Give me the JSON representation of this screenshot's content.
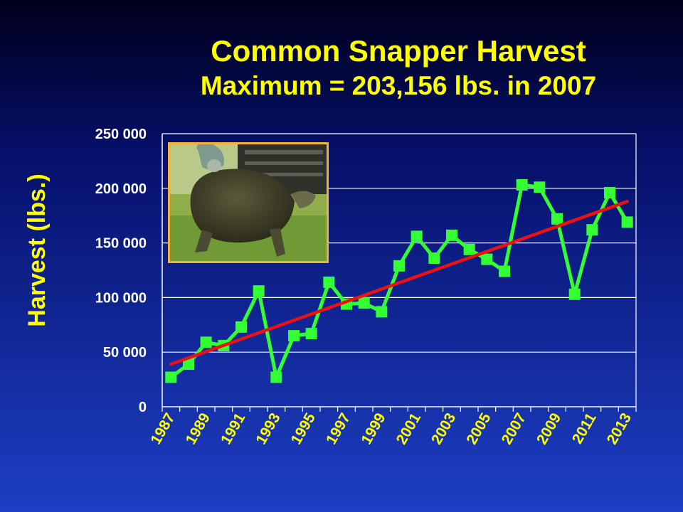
{
  "slide": {
    "title": "Common Snapper Harvest",
    "subtitle": "Maximum = 203,156 lbs. in 2007",
    "photo_icon": "snapping-turtle-photo"
  },
  "chart_data": {
    "type": "line",
    "title": "Common Snapper Harvest",
    "subtitle": "Maximum = 203,156 lbs. in 2007",
    "xlabel": "",
    "ylabel": "Harvest (lbs.)",
    "ylim": [
      0,
      250000
    ],
    "yticks": [
      0,
      50000,
      100000,
      150000,
      200000,
      250000
    ],
    "ytick_labels": [
      "0",
      "50 000",
      "100 000",
      "150 000",
      "200 000",
      "250 000"
    ],
    "xlim": [
      1987,
      2013
    ],
    "xtick_labels": [
      "1987",
      "1989",
      "1991",
      "1993",
      "1995",
      "1997",
      "1999",
      "2001",
      "2003",
      "2005",
      "2007",
      "2009",
      "2011",
      "2013"
    ],
    "grid": true,
    "legend": "none",
    "series": [
      {
        "color": "#33ff33",
        "marker": "square",
        "x": [
          1987,
          1988,
          1989,
          1990,
          1991,
          1992,
          1993,
          1994,
          1995,
          1996,
          1997,
          1998,
          1999,
          2000,
          2001,
          2002,
          2003,
          2004,
          2005,
          2006,
          2007,
          2008,
          2009,
          2010,
          2011,
          2012,
          2013
        ],
        "y": [
          27000,
          39000,
          59000,
          56000,
          73000,
          106000,
          27000,
          65000,
          67000,
          114000,
          94000,
          95000,
          87000,
          129000,
          156000,
          136000,
          157000,
          144000,
          135000,
          124000,
          203156,
          201000,
          172000,
          103000,
          162000,
          196000,
          169000
        ]
      }
    ],
    "trendline": {
      "color": "#ee1111",
      "x": [
        1987,
        2013
      ],
      "y": [
        39000,
        188000
      ]
    }
  }
}
